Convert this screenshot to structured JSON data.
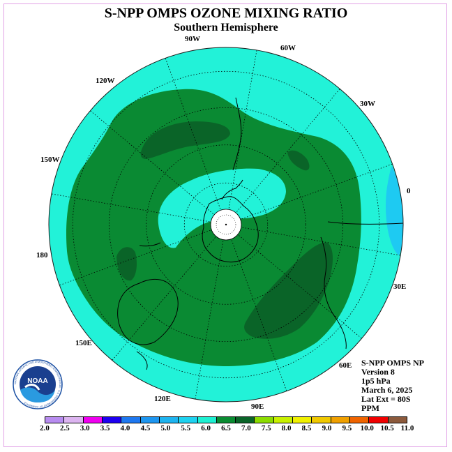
{
  "header": {
    "title": "S-NPP OMPS OZONE MIXING RATIO",
    "subtitle": "Southern Hemisphere"
  },
  "info": {
    "product": "S-NPP OMPS NP",
    "version": "Version 8",
    "pressure": "1p5 hPa",
    "date": "March 6, 2025",
    "lat_ext": "Lat Ext = 80S",
    "units": "PPM"
  },
  "longitude_labels": [
    "90W",
    "60W",
    "30W",
    "0",
    "30E",
    "60E",
    "90E",
    "120E",
    "150E",
    "180",
    "150W",
    "120W"
  ],
  "colorbar": {
    "ticks": [
      "2.0",
      "2.5",
      "3.0",
      "3.5",
      "4.0",
      "4.5",
      "5.0",
      "5.5",
      "6.0",
      "6.5",
      "7.0",
      "7.5",
      "8.0",
      "8.5",
      "9.0",
      "9.5",
      "10.0",
      "10.5",
      "11.0"
    ],
    "colors": [
      "#b88cf0",
      "#dcb4f0",
      "#f000f0",
      "#1e00f0",
      "#1e78f0",
      "#1e96f0",
      "#1eb4f0",
      "#1ed2f0",
      "#1ef0d2",
      "#0a8c32",
      "#0a6428",
      "#8cdc00",
      "#c8f000",
      "#f0f000",
      "#f0c800",
      "#f0a000",
      "#f06400",
      "#f00000",
      "#8c5a3c"
    ]
  },
  "map_colors": {
    "background": "#22f2d8",
    "band_6_5": "#0a8a33",
    "band_7_0": "#0a6428",
    "band_5_5": "#1ecaf2",
    "grid": "#000000",
    "circle": "#1b1b1b"
  },
  "logo": {
    "text": "NOAA",
    "ring_text": "NATIONAL OCEANIC AND ATMOSPHERIC ADMINISTRATION · U.S. DEPARTMENT OF COMMERCE"
  }
}
